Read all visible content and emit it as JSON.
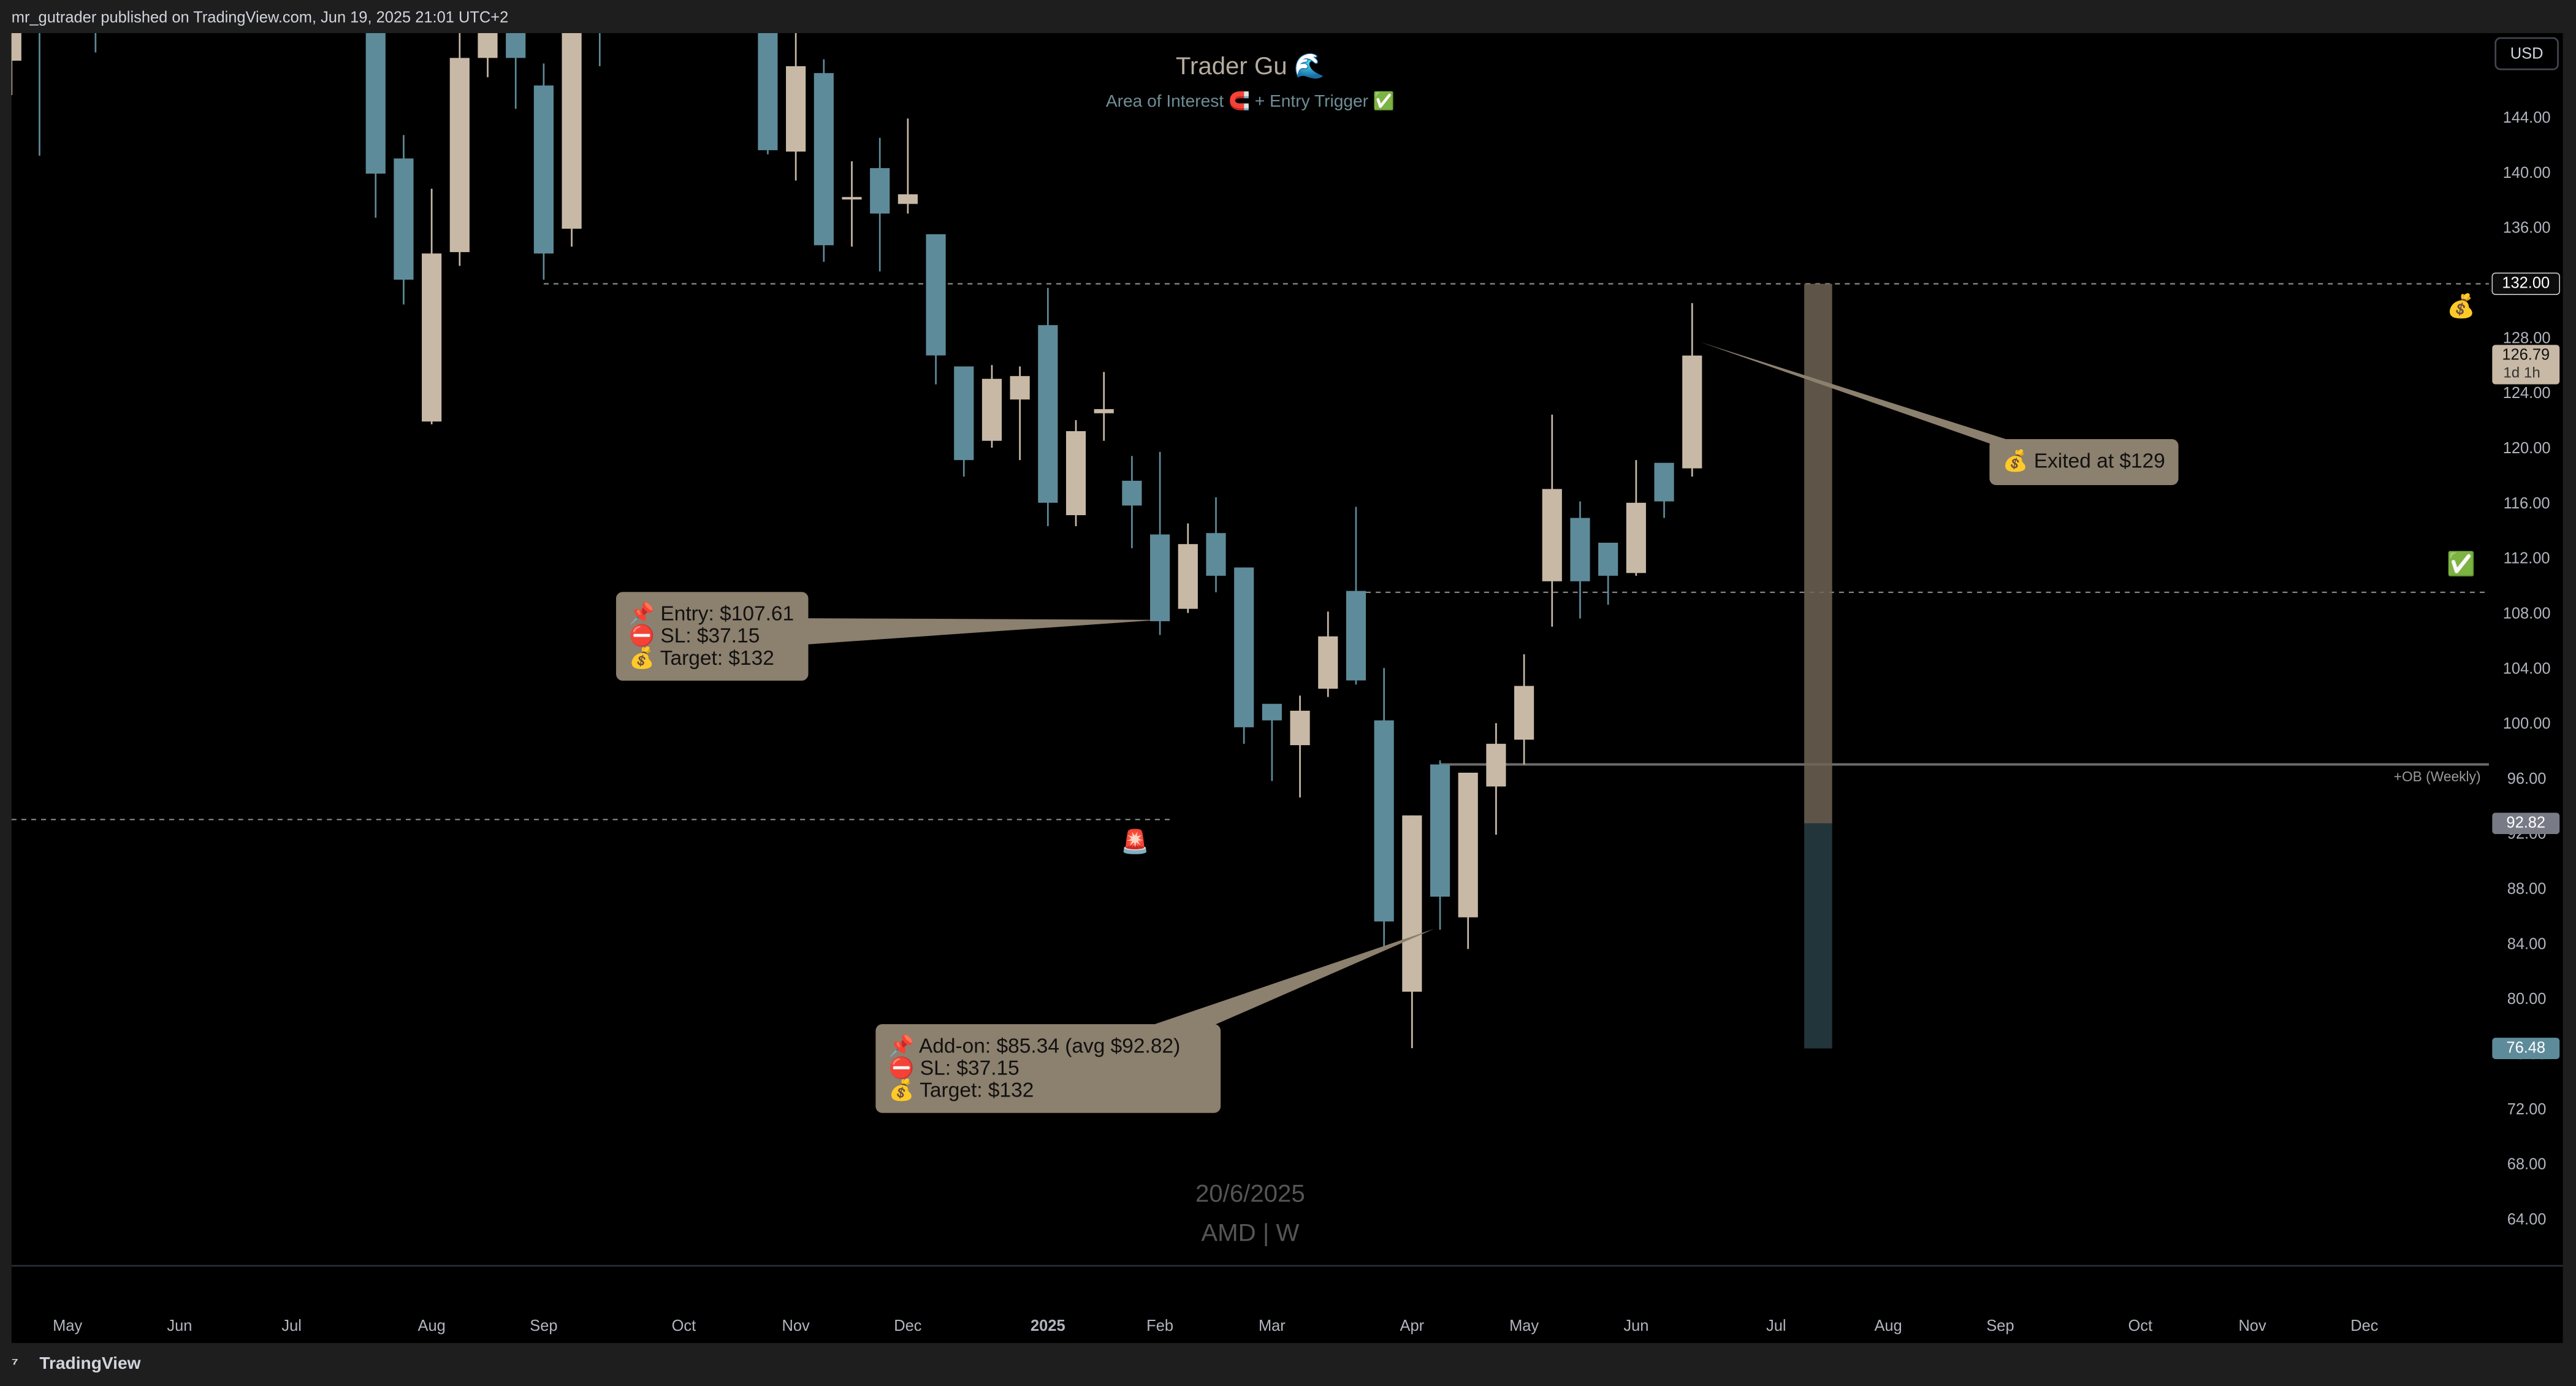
{
  "chart_data": {
    "type": "candlestick",
    "header": "mr_gutrader published on TradingView.com, Jun 19, 2025 21:01 UTC+2",
    "currency": "USD",
    "title": "Trader Gu 🌊",
    "subtitle": "Area of Interest 🧲 + Entry Trigger ✅",
    "watermark": [
      "20/6/2025",
      "AMD | W"
    ],
    "footer": "TradingView",
    "categories": [
      null,
      null,
      "May",
      null,
      null,
      null,
      "Jun",
      null,
      null,
      null,
      "Jul",
      null,
      null,
      null,
      null,
      "Aug",
      null,
      null,
      null,
      "Sep",
      null,
      null,
      null,
      null,
      "Oct",
      null,
      null,
      null,
      "Nov",
      null,
      null,
      null,
      "Dec",
      null,
      null,
      null,
      null,
      "2025",
      null,
      null,
      null,
      "Feb",
      null,
      null,
      null,
      "Mar",
      null,
      null,
      null,
      null,
      "Apr",
      null,
      null,
      null,
      "May",
      null,
      null,
      null,
      "Jun",
      null,
      null,
      null,
      null,
      "Jul",
      null,
      null,
      null,
      "Aug",
      null,
      null,
      null,
      "Sep",
      null,
      null,
      null,
      null,
      "Oct",
      null,
      null,
      null,
      "Nov",
      null,
      null,
      null,
      "Dec",
      null,
      null,
      null,
      null
    ],
    "open": [
      148.2,
      155,
      null,
      154,
      null,
      null,
      null,
      null,
      null,
      null,
      null,
      null,
      null,
      152,
      141.1,
      122,
      134.3,
      148.4,
      152,
      146.4,
      136,
      155,
      null,
      null,
      null,
      null,
      null,
      153,
      141.6,
      147.3,
      138.3,
      140.4,
      137.8,
      135.6,
      126,
      120.6,
      123.6,
      129,
      115.2,
      122.6,
      117.7,
      113.8,
      108.4,
      113.9,
      111.4,
      101.5,
      98.5,
      102.6,
      109.7,
      100.3,
      80.6,
      97.1,
      86,
      95.5,
      98.9,
      110.4,
      115,
      113.2,
      111,
      119,
      118.6,
      null,
      null,
      null,
      null,
      null,
      null,
      null,
      null,
      null,
      null,
      null,
      null,
      null,
      null,
      null,
      null,
      null,
      null,
      null,
      null,
      null,
      null,
      null,
      null,
      null,
      null,
      null,
      null
    ],
    "high": [
      152,
      156,
      null,
      156,
      null,
      null,
      null,
      null,
      null,
      null,
      null,
      null,
      null,
      155,
      142.8,
      138.9,
      151,
      152,
      153,
      148,
      152,
      156,
      null,
      null,
      null,
      null,
      null,
      155,
      150.2,
      148.3,
      140.9,
      142.6,
      144,
      135.6,
      126,
      126.1,
      126,
      131.7,
      122.1,
      125.6,
      119.5,
      119.8,
      114.6,
      116.5,
      111.4,
      101.5,
      102.1,
      108.2,
      115.8,
      104.1,
      93.4,
      97.4,
      96.5,
      100.1,
      105.1,
      122.5,
      116.2,
      113.2,
      119.2,
      119,
      130.6,
      null,
      null,
      null,
      null,
      null,
      null,
      null,
      null,
      null,
      null,
      null,
      null,
      null,
      null,
      null,
      null,
      null,
      null,
      null,
      null,
      null,
      null,
      null,
      null,
      null,
      null,
      null,
      null
    ],
    "low": [
      145.7,
      141.3,
      null,
      148.8,
      null,
      null,
      null,
      null,
      null,
      null,
      null,
      null,
      null,
      136.8,
      130.5,
      121.8,
      133.3,
      147,
      144.7,
      132.3,
      134.7,
      147.8,
      null,
      null,
      null,
      null,
      null,
      141.4,
      139.5,
      133.6,
      134.7,
      132.9,
      137.1,
      124.7,
      118,
      120.1,
      119.2,
      114.4,
      114.4,
      120.6,
      112.8,
      106.5,
      108.1,
      109.6,
      98.6,
      95.9,
      94.7,
      102,
      102.9,
      83.6,
      76.5,
      85.1,
      83.7,
      92,
      97.1,
      107.1,
      107.7,
      108.7,
      110.8,
      115,
      118,
      null,
      null,
      null,
      null,
      null,
      null,
      null,
      null,
      null,
      null,
      null,
      null,
      null,
      null,
      null,
      null,
      null,
      null,
      null,
      null,
      null,
      null,
      null,
      null,
      null,
      null,
      null,
      null
    ],
    "close": [
      151,
      153,
      null,
      152,
      null,
      null,
      null,
      null,
      null,
      null,
      null,
      null,
      null,
      140,
      132.3,
      134.2,
      148.4,
      151,
      148.4,
      134.2,
      151,
      153,
      null,
      null,
      null,
      null,
      null,
      141.7,
      147.8,
      134.8,
      138.3,
      137.1,
      138.5,
      126.8,
      119.2,
      125.1,
      125.3,
      116.1,
      121.3,
      122.9,
      115.9,
      107.5,
      113.1,
      110.8,
      99.8,
      100.3,
      101,
      106.4,
      103.2,
      85.7,
      93.4,
      87.5,
      96.5,
      98.6,
      102.8,
      117.1,
      110.4,
      110.8,
      116.1,
      116.2,
      126.79,
      null,
      null,
      null,
      null,
      null,
      null,
      null,
      null,
      null,
      null,
      null,
      null,
      null,
      null,
      null,
      null,
      null,
      null,
      null,
      null,
      null,
      null,
      null,
      null,
      null,
      null,
      null,
      null
    ],
    "up_color": "#c8b9a6",
    "down_color": "#5e8b9a",
    "ylim": [
      60.7,
      150.2
    ],
    "yticks": [
      {
        "value": 64,
        "label": "64.00"
      },
      {
        "value": 68,
        "label": "68.00"
      },
      {
        "value": 72,
        "label": "72.00"
      },
      {
        "value": 76,
        "label": "76.00"
      },
      {
        "value": 80,
        "label": "80.00"
      },
      {
        "value": 84,
        "label": "84.00"
      },
      {
        "value": 88,
        "label": "88.00"
      },
      {
        "value": 92,
        "label": "92.00"
      },
      {
        "value": 96,
        "label": "96.00"
      },
      {
        "value": 100,
        "label": "100.00"
      },
      {
        "value": 104,
        "label": "104.00"
      },
      {
        "value": 108,
        "label": "108.00"
      },
      {
        "value": 112,
        "label": "112.00"
      },
      {
        "value": 116,
        "label": "116.00"
      },
      {
        "value": 120,
        "label": "120.00"
      },
      {
        "value": 124,
        "label": "124.00"
      },
      {
        "value": 128,
        "label": "128.00"
      },
      {
        "value": 132,
        "label": "132.00"
      },
      {
        "value": 136,
        "label": "136.00"
      },
      {
        "value": 140,
        "label": "140.00"
      },
      {
        "value": 144,
        "label": "144.00"
      }
    ],
    "levels": [
      {
        "value": 132,
        "from": 19,
        "to": 88,
        "style": "dashed"
      },
      {
        "value": 109.6,
        "from": 48,
        "to": 88,
        "style": "dashed"
      },
      {
        "value": 97.1,
        "from": 51,
        "to": 88,
        "style": "solid",
        "label": "+OB (Weekly)"
      },
      {
        "value": 93.1,
        "from": 0,
        "to": 41,
        "style": "dashed"
      }
    ],
    "price_labels": [
      {
        "value": 132,
        "label": "132.00",
        "color": "#0c0c0c"
      },
      {
        "value": 92.82,
        "label": "92.82",
        "color": "#787b86"
      },
      {
        "value": 76.48,
        "label": "76.48",
        "color": "#5e8b9a"
      }
    ],
    "last_price": {
      "value": 126.79,
      "label": "126.79",
      "countdown": "1d 1h"
    },
    "position": {
      "index": 64.5,
      "top": 132,
      "mid": 92.82,
      "bottom": 76.48
    },
    "callouts": [
      {
        "lines": [
          "📌 Entry: $107.61",
          "⛔ SL: $37.15",
          "💰 Target: $132"
        ]
      },
      {
        "lines": [
          "📌 Add-on: $85.34 (avg $92.82)",
          "⛔ SL: $37.15",
          "💰 Target: $132"
        ]
      },
      {
        "lines": [
          "💰 Exited at $129"
        ]
      }
    ],
    "markers": [
      "💰",
      "✅",
      "🚨"
    ]
  }
}
